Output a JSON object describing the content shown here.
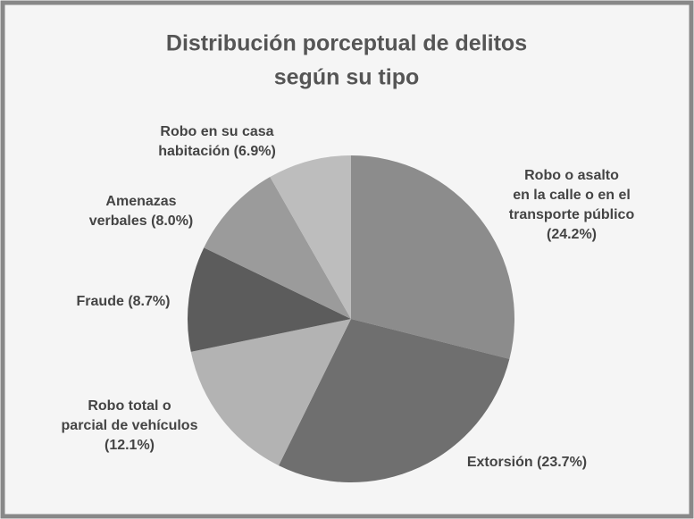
{
  "chart_data": {
    "type": "pie",
    "title": [
      "Distribución porceptual de delitos",
      "según su tipo"
    ],
    "categories": [
      [
        "Robo o asalto",
        "en la calle o en el",
        "transporte público",
        "(24.2%)"
      ],
      [
        "Extorsión (23.7%)"
      ],
      [
        "Robo total o",
        "parcial de vehículos",
        "(12.1%)"
      ],
      [
        "Fraude (8.7%)"
      ],
      [
        "Amenazas",
        "verbales (8.0%)"
      ],
      [
        "Robo en su casa",
        "habitación (6.9%)"
      ]
    ],
    "values": [
      24.2,
      23.7,
      12.1,
      8.7,
      8.0,
      6.9
    ],
    "colors": [
      "#8c8c8c",
      "#6f6f6f",
      "#b3b3b3",
      "#5c5c5c",
      "#9b9b9b",
      "#bdbdbd"
    ]
  }
}
